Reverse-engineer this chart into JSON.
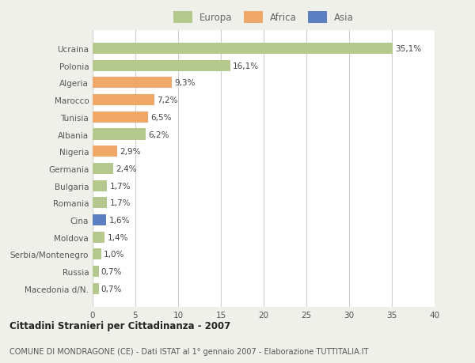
{
  "categories": [
    "Ucraina",
    "Polonia",
    "Algeria",
    "Marocco",
    "Tunisia",
    "Albania",
    "Nigeria",
    "Germania",
    "Bulgaria",
    "Romania",
    "Cina",
    "Moldova",
    "Serbia/Montenegro",
    "Russia",
    "Macedonia d/N."
  ],
  "values": [
    35.1,
    16.1,
    9.3,
    7.2,
    6.5,
    6.2,
    2.9,
    2.4,
    1.7,
    1.7,
    1.6,
    1.4,
    1.0,
    0.7,
    0.7
  ],
  "labels": [
    "35,1%",
    "16,1%",
    "9,3%",
    "7,2%",
    "6,5%",
    "6,2%",
    "2,9%",
    "2,4%",
    "1,7%",
    "1,7%",
    "1,6%",
    "1,4%",
    "1,0%",
    "0,7%",
    "0,7%"
  ],
  "continent": [
    "Europa",
    "Europa",
    "Africa",
    "Africa",
    "Africa",
    "Europa",
    "Africa",
    "Europa",
    "Europa",
    "Europa",
    "Asia",
    "Europa",
    "Europa",
    "Europa",
    "Europa"
  ],
  "colors": {
    "Europa": "#b5c98e",
    "Africa": "#f0a868",
    "Asia": "#5b7fc1"
  },
  "xlim": [
    0,
    40
  ],
  "xticks": [
    0,
    5,
    10,
    15,
    20,
    25,
    30,
    35,
    40
  ],
  "title_main": "Cittadini Stranieri per Cittadinanza - 2007",
  "title_sub": "COMUNE DI MONDRAGONE (CE) - Dati ISTAT al 1° gennaio 2007 - Elaborazione TUTTITALIA.IT",
  "background_color": "#f0f0eb",
  "plot_bg_color": "#ffffff",
  "grid_color": "#d0d0d0",
  "bar_height": 0.65,
  "label_fontsize": 7.5,
  "tick_fontsize": 7.5,
  "legend_fontsize": 8.5
}
